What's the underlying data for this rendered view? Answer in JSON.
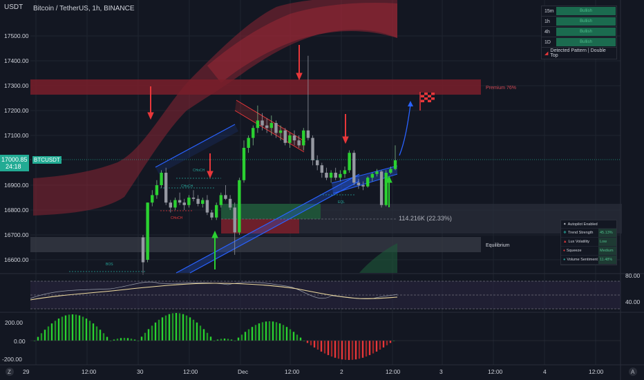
{
  "header": {
    "unit": "USDT",
    "title": "Bitcoin / TetherUS, 1h, BINANCE"
  },
  "price_axis": {
    "labels": [
      "17500.00",
      "17400.00",
      "17300.00",
      "17200.00",
      "17100.00",
      "16900.00",
      "16800.00",
      "16700.00",
      "16600.00"
    ],
    "current_price": "17000.85",
    "countdown": "24:18",
    "symbol": "BTCUSDT"
  },
  "time_axis": {
    "labels": [
      "29",
      "12:00",
      "30",
      "12:00",
      "Dec",
      "12:00",
      "2",
      "12:00",
      "3",
      "12:00",
      "4",
      "12:00"
    ]
  },
  "zones": {
    "premium_label": "Premium 76%",
    "equilibrium_label": "Equilibrium",
    "move_label": "114.216K (22.33%)"
  },
  "structure_labels": {
    "choch_1": "CHoCH",
    "choch_2": "CHoCH",
    "choch_3": "CHoCH",
    "bos_1": "BOS",
    "eql": "EQL"
  },
  "timeframe_table": {
    "rows": [
      {
        "tf": "15m",
        "value": "Bullish"
      },
      {
        "tf": "1h",
        "value": "Bullish"
      },
      {
        "tf": "4h",
        "value": "Bullish"
      },
      {
        "tf": "1D",
        "value": "Bullish"
      }
    ],
    "pattern": "Detected Pattern | Double Top"
  },
  "dashboard": {
    "header": "Autopilot Enabled",
    "rows": [
      {
        "name": "Trend Strength",
        "value": "45.13%"
      },
      {
        "name": "Lux Volatility",
        "value": "Low"
      },
      {
        "name": "Squeeze",
        "value": "Medium"
      },
      {
        "name": "Volume Sentiment",
        "value": "11.48%"
      }
    ]
  },
  "oscillator_axis": {
    "upper": "80.00",
    "lower": "40.00"
  },
  "histogram_axis": {
    "top": "200.00",
    "zero": "0.00",
    "bottom": "-200.00"
  },
  "footer": {
    "left_icon_label": "Z",
    "right_icon_label": "A"
  },
  "colors": {
    "background": "#131722",
    "bull": "#2bd131",
    "bear": "#e8373a",
    "premium_zone": "#7a1e2a",
    "discount_zone": "#1e5a3a",
    "channel_blue": "#2962ff",
    "accent": "#22ab94"
  },
  "chart_data": {
    "type": "candlestick",
    "title": "Bitcoin / TetherUS, 1h, BINANCE",
    "ylim": [
      16560,
      17600
    ],
    "candles": [
      {
        "o": 16690,
        "h": 16700,
        "l": 16540,
        "c": 16590
      },
      {
        "o": 16600,
        "h": 16830,
        "l": 16590,
        "c": 16830
      },
      {
        "o": 16830,
        "h": 16880,
        "l": 16815,
        "c": 16860
      },
      {
        "o": 16860,
        "h": 16920,
        "l": 16845,
        "c": 16900
      },
      {
        "o": 16900,
        "h": 16960,
        "l": 16890,
        "c": 16950
      },
      {
        "o": 16950,
        "h": 16970,
        "l": 16820,
        "c": 16830
      },
      {
        "o": 16830,
        "h": 16840,
        "l": 16790,
        "c": 16810
      },
      {
        "o": 16810,
        "h": 16850,
        "l": 16800,
        "c": 16840
      },
      {
        "o": 16840,
        "h": 16870,
        "l": 16820,
        "c": 16830
      },
      {
        "o": 16830,
        "h": 16845,
        "l": 16800,
        "c": 16820
      },
      {
        "o": 16820,
        "h": 16860,
        "l": 16810,
        "c": 16850
      },
      {
        "o": 16850,
        "h": 16880,
        "l": 16835,
        "c": 16845
      },
      {
        "o": 16845,
        "h": 16860,
        "l": 16815,
        "c": 16825
      },
      {
        "o": 16825,
        "h": 16850,
        "l": 16810,
        "c": 16840
      },
      {
        "o": 16840,
        "h": 16860,
        "l": 16780,
        "c": 16790
      },
      {
        "o": 16790,
        "h": 16800,
        "l": 16760,
        "c": 16770
      },
      {
        "o": 16770,
        "h": 16830,
        "l": 16760,
        "c": 16820
      },
      {
        "o": 16820,
        "h": 16870,
        "l": 16810,
        "c": 16860
      },
      {
        "o": 16860,
        "h": 16900,
        "l": 16840,
        "c": 16845
      },
      {
        "o": 16845,
        "h": 16860,
        "l": 16800,
        "c": 16810
      },
      {
        "o": 16810,
        "h": 16830,
        "l": 16620,
        "c": 16710
      },
      {
        "o": 16710,
        "h": 16930,
        "l": 16700,
        "c": 16920
      },
      {
        "o": 16920,
        "h": 17080,
        "l": 16910,
        "c": 17050
      },
      {
        "o": 17050,
        "h": 17100,
        "l": 17030,
        "c": 17090
      },
      {
        "o": 17090,
        "h": 17140,
        "l": 17060,
        "c": 17130
      },
      {
        "o": 17130,
        "h": 17220,
        "l": 17110,
        "c": 17160
      },
      {
        "o": 17160,
        "h": 17190,
        "l": 17120,
        "c": 17140
      },
      {
        "o": 17140,
        "h": 17170,
        "l": 17110,
        "c": 17130
      },
      {
        "o": 17130,
        "h": 17180,
        "l": 17100,
        "c": 17150
      },
      {
        "o": 17150,
        "h": 17160,
        "l": 17090,
        "c": 17110
      },
      {
        "o": 17110,
        "h": 17140,
        "l": 17080,
        "c": 17120
      },
      {
        "o": 17120,
        "h": 17130,
        "l": 17060,
        "c": 17070
      },
      {
        "o": 17070,
        "h": 17110,
        "l": 17050,
        "c": 17100
      },
      {
        "o": 17100,
        "h": 17120,
        "l": 17060,
        "c": 17080
      },
      {
        "o": 17080,
        "h": 17100,
        "l": 17050,
        "c": 17060
      },
      {
        "o": 17060,
        "h": 17130,
        "l": 17040,
        "c": 17120
      },
      {
        "o": 17120,
        "h": 17420,
        "l": 17080,
        "c": 17090
      },
      {
        "o": 17090,
        "h": 17100,
        "l": 16980,
        "c": 17000
      },
      {
        "o": 17000,
        "h": 17020,
        "l": 16960,
        "c": 16980
      },
      {
        "o": 16980,
        "h": 16990,
        "l": 16930,
        "c": 16950
      },
      {
        "o": 16950,
        "h": 16970,
        "l": 16920,
        "c": 16930
      },
      {
        "o": 16930,
        "h": 16960,
        "l": 16910,
        "c": 16950
      },
      {
        "o": 16950,
        "h": 16970,
        "l": 16920,
        "c": 16930
      },
      {
        "o": 16930,
        "h": 16960,
        "l": 16915,
        "c": 16945
      },
      {
        "o": 16945,
        "h": 16975,
        "l": 16930,
        "c": 16960
      },
      {
        "o": 16960,
        "h": 17040,
        "l": 16950,
        "c": 17030
      },
      {
        "o": 17030,
        "h": 17040,
        "l": 16900,
        "c": 16910
      },
      {
        "o": 16910,
        "h": 16925,
        "l": 16885,
        "c": 16900
      },
      {
        "o": 16900,
        "h": 16915,
        "l": 16880,
        "c": 16895
      },
      {
        "o": 16895,
        "h": 16935,
        "l": 16890,
        "c": 16930
      },
      {
        "o": 16930,
        "h": 16950,
        "l": 16915,
        "c": 16945
      },
      {
        "o": 16945,
        "h": 16965,
        "l": 16935,
        "c": 16955
      },
      {
        "o": 16955,
        "h": 16960,
        "l": 16810,
        "c": 16820
      },
      {
        "o": 16820,
        "h": 16960,
        "l": 16815,
        "c": 16950
      },
      {
        "o": 16950,
        "h": 16975,
        "l": 16945,
        "c": 16965
      },
      {
        "o": 16965,
        "h": 17060,
        "l": 16960,
        "c": 17000
      }
    ]
  }
}
